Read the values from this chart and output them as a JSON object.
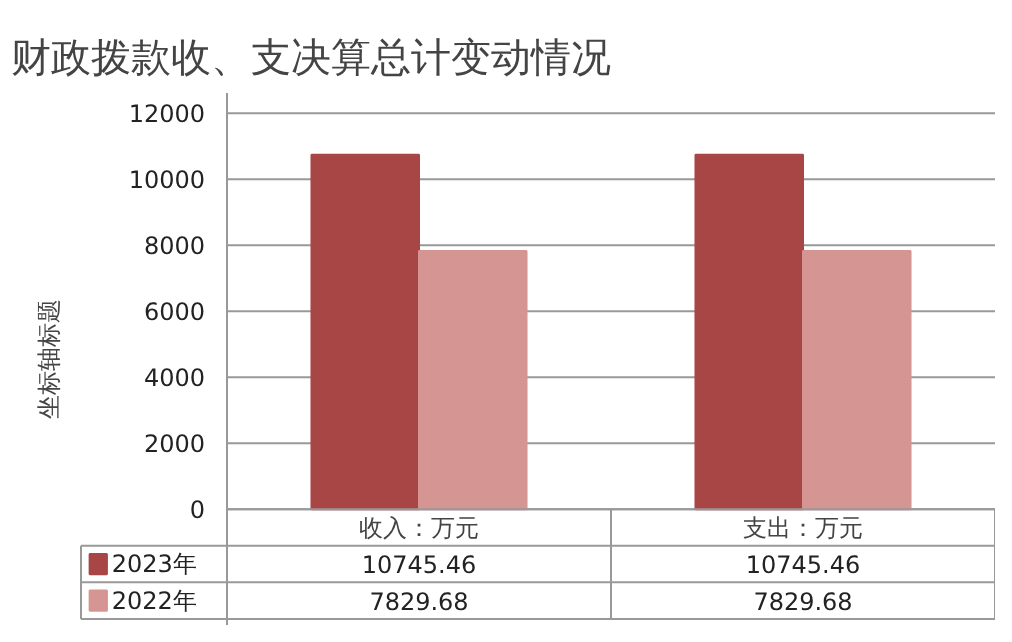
{
  "chart_data": {
    "type": "bar",
    "title": "财政拨款收、支决算总计变动情况",
    "ylabel": "坐标轴标题",
    "categories": [
      "收入：万元",
      "支出：万元"
    ],
    "series": [
      {
        "name": "2023年",
        "color": "#a84646",
        "values": [
          10745.46,
          10745.46
        ]
      },
      {
        "name": "2022年",
        "color": "#d49593",
        "values": [
          7829.68,
          7829.68
        ]
      }
    ],
    "ylim": [
      0,
      12000
    ],
    "yticks": [
      0,
      2000,
      4000,
      6000,
      8000,
      10000,
      12000
    ],
    "grid": "y",
    "legend": "bottom left",
    "data_labels": true
  }
}
